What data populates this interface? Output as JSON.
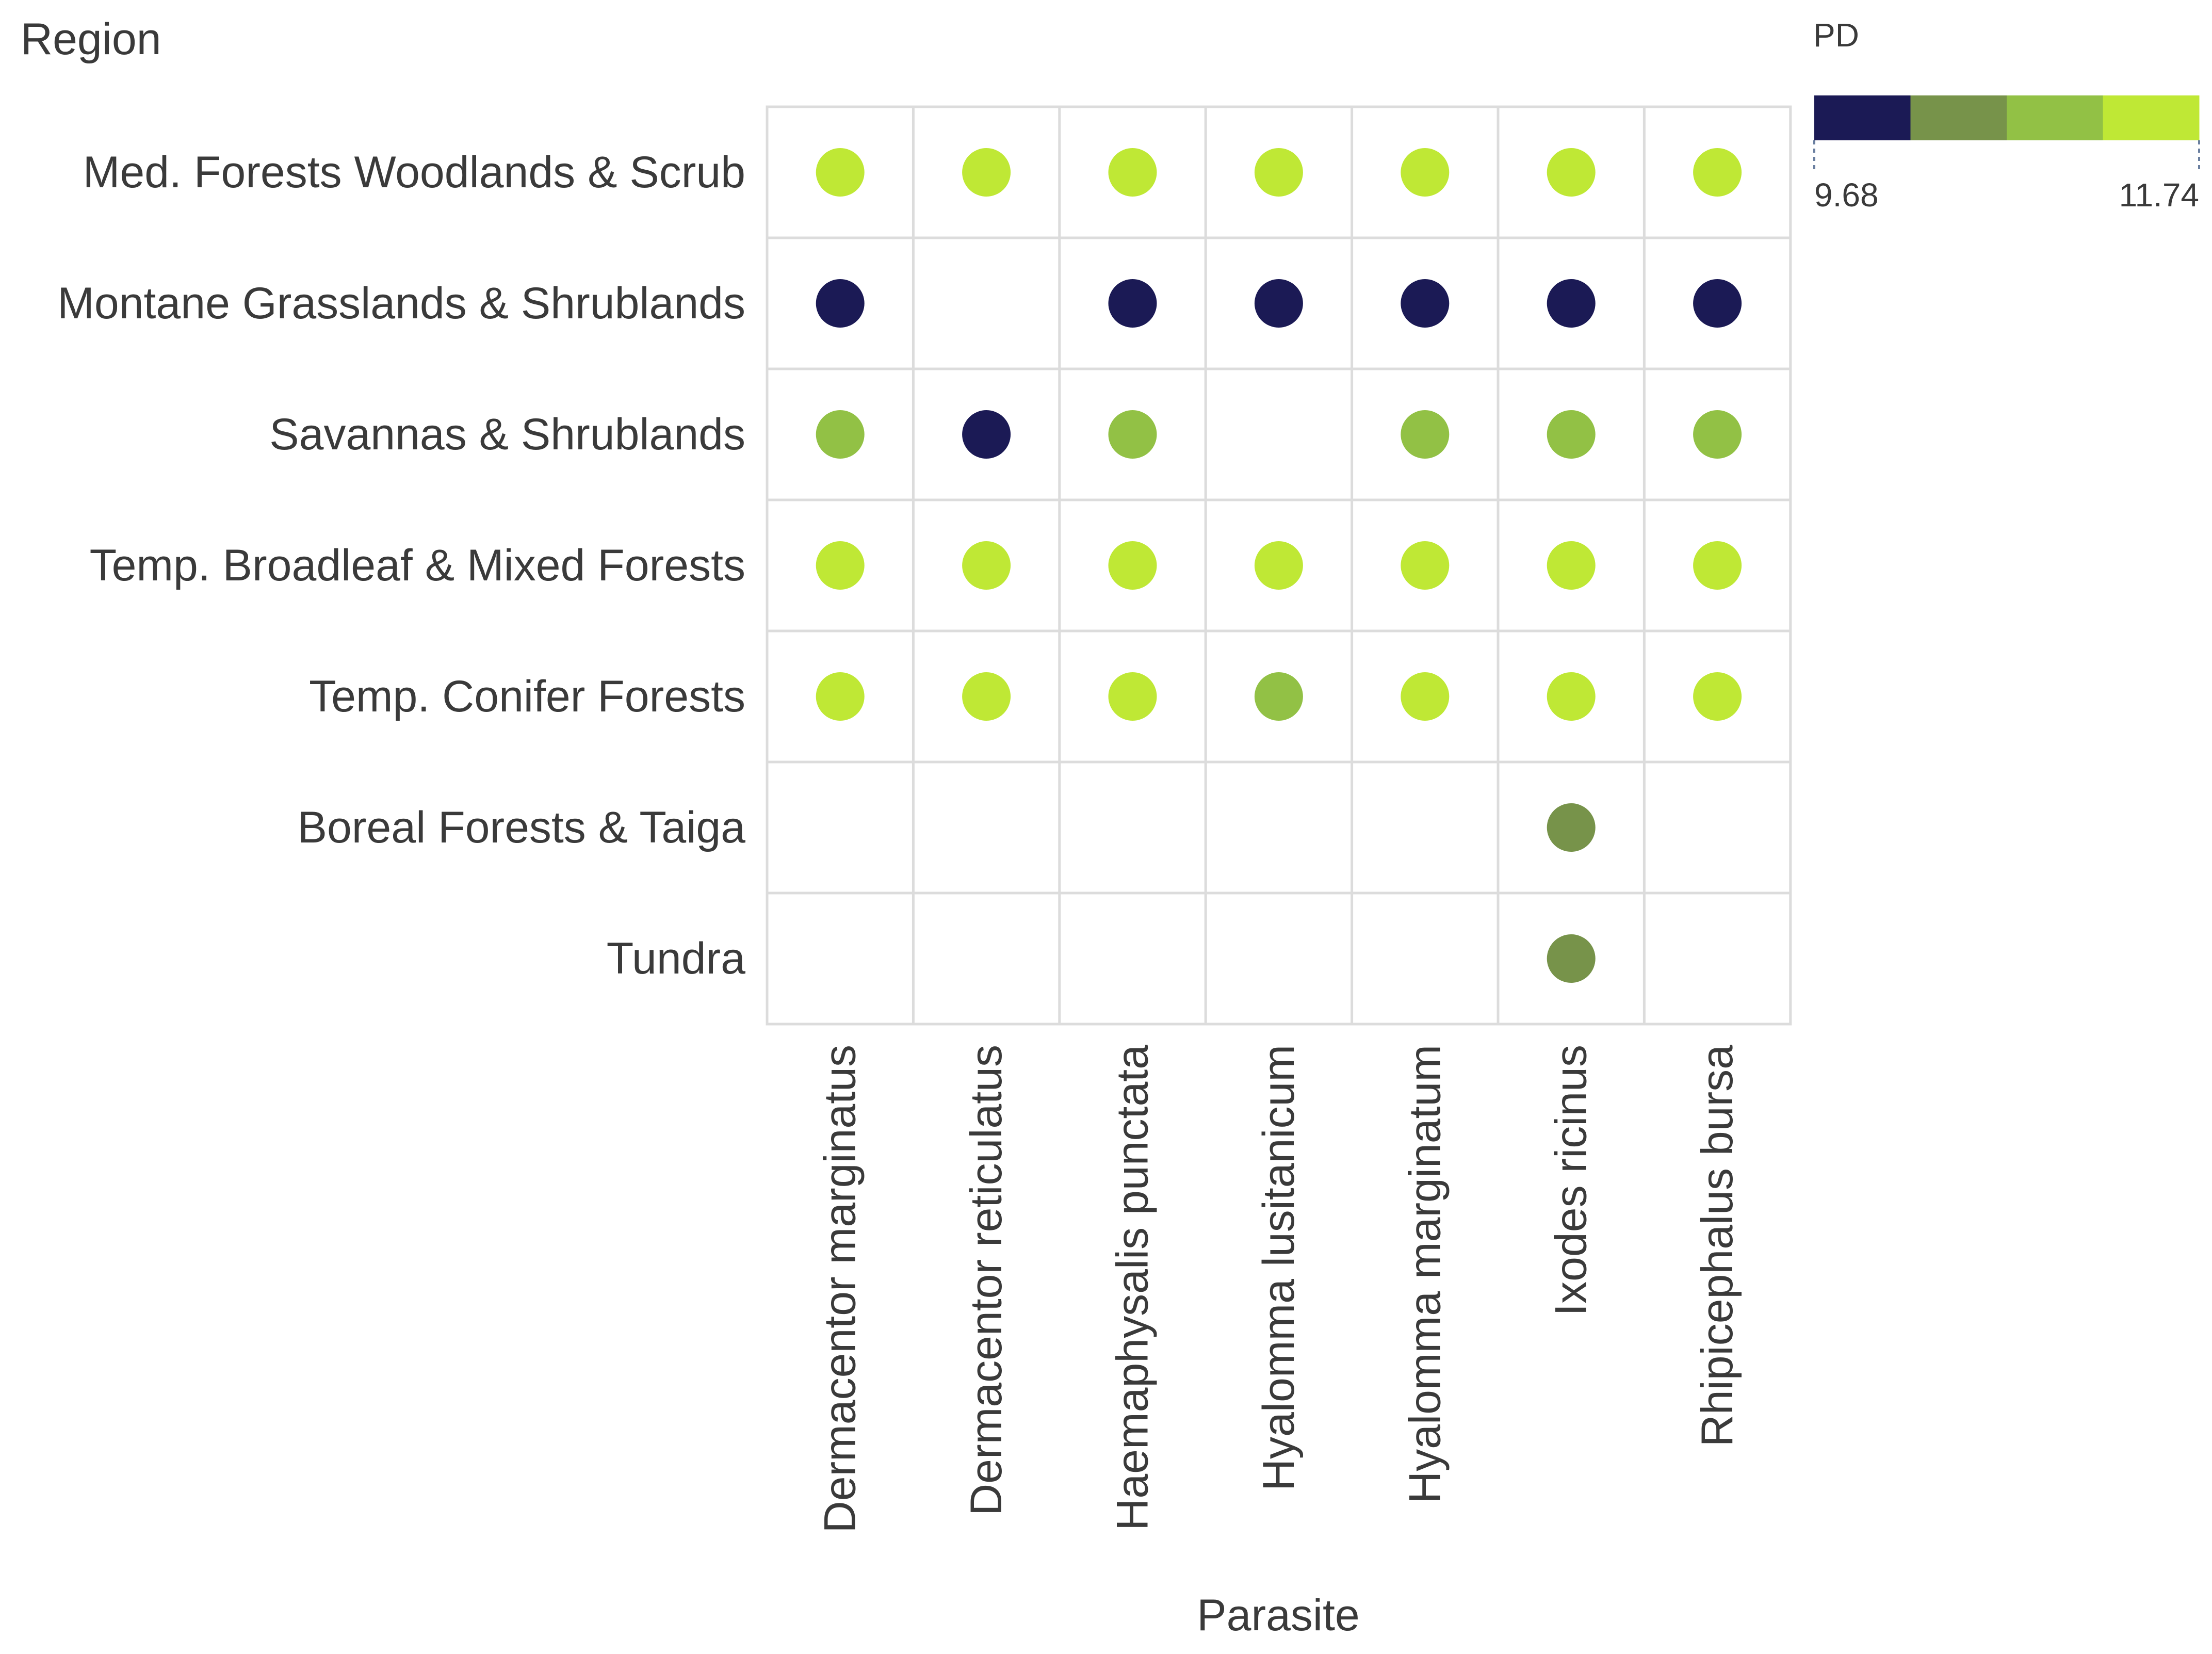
{
  "chart_data": {
    "type": "heatmap",
    "mark": "circle",
    "y_title": "Region",
    "x_title": "Parasite",
    "legend_title": "PD",
    "legend_min_label": "9.68",
    "legend_max_label": "11.74",
    "legend_range": [
      9.68,
      11.74
    ],
    "color_bins": [
      "#1b1a55",
      "#77934a",
      "#92c145",
      "#bfe835"
    ],
    "rows": [
      "Med. Forests Woodlands & Scrub",
      "Montane Grasslands & Shrublands",
      "Savannas & Shrublands",
      "Temp. Broadleaf & Mixed Forests",
      "Temp. Conifer Forests",
      "Boreal Forests & Taiga",
      "Tundra"
    ],
    "columns": [
      "Dermacentor marginatus",
      "Dermacentor reticulatus",
      "Haemaphysalis punctata",
      "Hyalomma lusitanicum",
      "Hyalomma marginatum",
      "Ixodes ricinus",
      "Rhipicephalus bursa"
    ],
    "values": [
      [
        11.6,
        11.6,
        11.6,
        11.6,
        11.6,
        11.6,
        11.6
      ],
      [
        9.7,
        null,
        9.7,
        9.7,
        9.7,
        9.7,
        9.7
      ],
      [
        11.0,
        9.7,
        11.0,
        null,
        11.0,
        11.0,
        11.0
      ],
      [
        11.6,
        11.6,
        11.6,
        11.6,
        11.6,
        11.6,
        11.6
      ],
      [
        11.6,
        11.6,
        11.6,
        11.0,
        11.6,
        11.6,
        11.6
      ],
      [
        null,
        null,
        null,
        null,
        null,
        10.4,
        null
      ],
      [
        null,
        null,
        null,
        null,
        null,
        10.4,
        null
      ]
    ]
  }
}
